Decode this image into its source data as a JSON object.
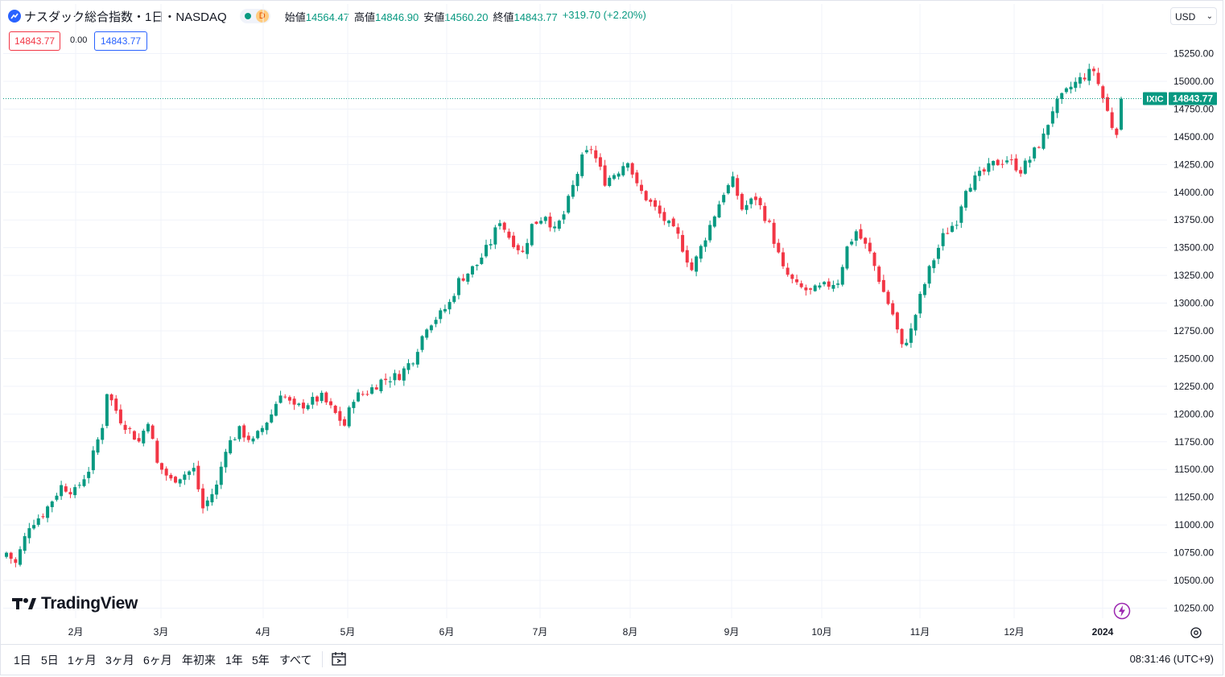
{
  "header": {
    "title": "ナスダック総合指数・1日・NASDAQ",
    "status_letter": "D",
    "ohlc": [
      {
        "label": "始値",
        "value": "14564.47"
      },
      {
        "label": "高値",
        "value": "14846.90"
      },
      {
        "label": "安値",
        "value": "14560.20"
      },
      {
        "label": "終値",
        "value": "14843.77"
      },
      {
        "label": "",
        "value": "+319.70 (+2.20%)"
      }
    ]
  },
  "indicators": {
    "left": "14843.77",
    "middle": "0.00",
    "right": "14843.77"
  },
  "currency": "USD",
  "price_tag": {
    "symbol": "IXIC",
    "value": "14843.77"
  },
  "bottom": {
    "ranges": [
      "1日",
      "5日",
      "1ヶ月",
      "3ヶ月",
      "6ヶ月",
      "年初来",
      "1年",
      "5年",
      "すべて"
    ],
    "clock": "08:31:46 (UTC+9)"
  },
  "brand": "TradingView",
  "colors": {
    "up": "#089981",
    "down": "#f23645",
    "accent": "#2962ff"
  },
  "icons": [
    "chart-line-icon",
    "calendar-range-icon",
    "lightning-icon",
    "settings-icon",
    "chevron-down-icon",
    "tradingview-logo-icon"
  ],
  "chart_data": {
    "type": "candlestick",
    "y_ticks": [
      10250,
      10500,
      10750,
      11000,
      11250,
      11500,
      11750,
      12000,
      12250,
      12500,
      12750,
      13000,
      13250,
      13500,
      13750,
      14000,
      14250,
      14500,
      14750,
      15000,
      15250
    ],
    "y_tick_labels": [
      "10250.00",
      "10500.00",
      "10750.00",
      "11000.00",
      "11250.00",
      "11500.00",
      "11750.00",
      "12000.00",
      "12250.00",
      "12500.00",
      "12750.00",
      "13000.00",
      "13250.00",
      "13500.00",
      "13750.00",
      "14000.00",
      "14250.00",
      "14500.00",
      "14750.00",
      "15000.00",
      "15250.00"
    ],
    "x_labels": [
      "2月",
      "3月",
      "4月",
      "5月",
      "6月",
      "7月",
      "8月",
      "9月",
      "10月",
      "11月",
      "12月",
      "2024"
    ],
    "last_close": 14843.77,
    "anchors": [
      [
        0,
        10750
      ],
      [
        2,
        10650
      ],
      [
        5,
        11000
      ],
      [
        8,
        11100
      ],
      [
        12,
        11350
      ],
      [
        15,
        11300
      ],
      [
        18,
        11500
      ],
      [
        21,
        11900
      ],
      [
        22,
        12200
      ],
      [
        25,
        11950
      ],
      [
        29,
        11750
      ],
      [
        31,
        11950
      ],
      [
        33,
        11550
      ],
      [
        36,
        11400
      ],
      [
        41,
        11500
      ],
      [
        43,
        11150
      ],
      [
        46,
        11350
      ],
      [
        48,
        11700
      ],
      [
        51,
        11850
      ],
      [
        54,
        11750
      ],
      [
        58,
        12000
      ],
      [
        60,
        12200
      ],
      [
        63,
        12050
      ],
      [
        66,
        12100
      ],
      [
        69,
        12150
      ],
      [
        72,
        12000
      ],
      [
        74,
        11900
      ],
      [
        76,
        12150
      ],
      [
        79,
        12200
      ],
      [
        82,
        12300
      ],
      [
        86,
        12350
      ],
      [
        89,
        12500
      ],
      [
        92,
        12800
      ],
      [
        95,
        12900
      ],
      [
        97,
        13000
      ],
      [
        99,
        13200
      ],
      [
        103,
        13350
      ],
      [
        106,
        13550
      ],
      [
        108,
        13750
      ],
      [
        110,
        13600
      ],
      [
        113,
        13450
      ],
      [
        115,
        13700
      ],
      [
        118,
        13800
      ],
      [
        120,
        13650
      ],
      [
        122,
        13800
      ],
      [
        124,
        14050
      ],
      [
        126,
        14300
      ],
      [
        128,
        14400
      ],
      [
        131,
        14100
      ],
      [
        134,
        14200
      ],
      [
        136,
        14300
      ],
      [
        138,
        14050
      ],
      [
        141,
        13900
      ],
      [
        144,
        13750
      ],
      [
        147,
        13600
      ],
      [
        150,
        13300
      ],
      [
        152,
        13500
      ],
      [
        154,
        13700
      ],
      [
        157,
        14000
      ],
      [
        159,
        14100
      ],
      [
        161,
        13850
      ],
      [
        164,
        13950
      ],
      [
        167,
        13700
      ],
      [
        170,
        13300
      ],
      [
        173,
        13150
      ],
      [
        176,
        13100
      ],
      [
        179,
        13150
      ],
      [
        182,
        13200
      ],
      [
        184,
        13500
      ],
      [
        186,
        13650
      ],
      [
        189,
        13450
      ],
      [
        192,
        13100
      ],
      [
        194,
        12900
      ],
      [
        196,
        12600
      ],
      [
        198,
        12750
      ],
      [
        200,
        13050
      ],
      [
        202,
        13300
      ],
      [
        205,
        13600
      ],
      [
        208,
        13750
      ],
      [
        210,
        14050
      ],
      [
        213,
        14150
      ],
      [
        216,
        14250
      ],
      [
        219,
        14300
      ],
      [
        222,
        14200
      ],
      [
        224,
        14300
      ],
      [
        227,
        14500
      ],
      [
        229,
        14750
      ],
      [
        231,
        14850
      ],
      [
        233,
        14950
      ],
      [
        236,
        15050
      ],
      [
        238,
        15100
      ],
      [
        240,
        14850
      ],
      [
        242,
        14600
      ],
      [
        243,
        14560
      ],
      [
        244,
        14843.77
      ]
    ]
  }
}
